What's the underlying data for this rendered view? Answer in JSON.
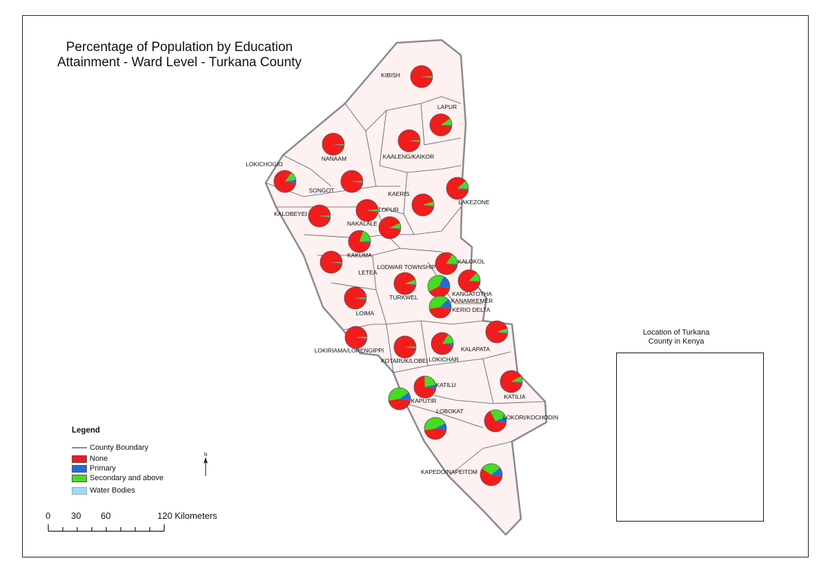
{
  "title": {
    "line1": "Percentage of Population by Education",
    "line2": "Attainment - Ward Level - Turkana County"
  },
  "colors": {
    "none": "#f21c1c",
    "primary": "#1f6fd6",
    "secondary": "#44dd22",
    "water": "#a6d8f2",
    "county_fill": "#fdf1f1",
    "boundary": "#8a8a8a",
    "inset_kenya": "#e4f7e0",
    "inset_turkana": "#ff6a10"
  },
  "legend": {
    "heading": "Legend",
    "items": [
      {
        "label": "County Boundary",
        "type": "line"
      },
      {
        "label": "None",
        "type": "none"
      },
      {
        "label": "Primary",
        "type": "primary"
      },
      {
        "label": "Secondary and above",
        "type": "secondary"
      },
      {
        "label": "Water Bodies",
        "type": "water"
      }
    ]
  },
  "north_arrow": "N",
  "scale": {
    "labels": [
      "0",
      "30",
      "60",
      "120 Kilometers"
    ]
  },
  "inset": {
    "title_line1": "Location of Turkana",
    "title_line2": "County in Kenya"
  },
  "wards": [
    {
      "name": "KIBISH",
      "none": 0.97,
      "primary": 0.01,
      "secondary": 0.02
    },
    {
      "name": "LAPUR",
      "none": 0.88,
      "primary": 0.02,
      "secondary": 0.1
    },
    {
      "name": "NANAAM",
      "none": 0.98,
      "primary": 0.01,
      "secondary": 0.01
    },
    {
      "name": "KAALENG/KAIKOR",
      "none": 0.97,
      "primary": 0.01,
      "secondary": 0.02
    },
    {
      "name": "LOKICHOGIO",
      "none": 0.83,
      "primary": 0.05,
      "secondary": 0.12
    },
    {
      "name": "SONGOT",
      "none": 0.97,
      "primary": 0.01,
      "secondary": 0.02
    },
    {
      "name": "KAERIS",
      "none": 0.93,
      "primary": 0.01,
      "secondary": 0.06
    },
    {
      "name": "LAKEZONE",
      "none": 0.86,
      "primary": 0.02,
      "secondary": 0.12
    },
    {
      "name": "KALOBEYEI",
      "none": 0.97,
      "primary": 0.01,
      "secondary": 0.02
    },
    {
      "name": "LOPUR",
      "none": 0.96,
      "primary": 0.01,
      "secondary": 0.03
    },
    {
      "name": "NAKALALE",
      "none": 0.91,
      "primary": 0.01,
      "secondary": 0.08
    },
    {
      "name": "KAKUMA",
      "none": 0.78,
      "primary": 0.03,
      "secondary": 0.19
    },
    {
      "name": "LETEA",
      "none": 0.98,
      "primary": 0.01,
      "secondary": 0.01
    },
    {
      "name": "KALOKOL",
      "none": 0.82,
      "primary": 0.02,
      "secondary": 0.16
    },
    {
      "name": "LODWAR TOWNSHIP",
      "none": 0.4,
      "primary": 0.2,
      "secondary": 0.4
    },
    {
      "name": "TURKWEL",
      "none": 0.92,
      "primary": 0.01,
      "secondary": 0.07
    },
    {
      "name": "KANGATOTHA",
      "none": 0.85,
      "primary": 0.02,
      "secondary": 0.13
    },
    {
      "name": "KANAMKEMER",
      "none": 0.45,
      "primary": 0.15,
      "secondary": 0.4
    },
    {
      "name": "KERIO DELTA",
      "none": 0.45,
      "primary": 0.15,
      "secondary": 0.4
    },
    {
      "name": "LOIMA",
      "none": 0.97,
      "primary": 0.01,
      "secondary": 0.02
    },
    {
      "name": "KALAPATA",
      "none": 0.93,
      "primary": 0.01,
      "secondary": 0.06
    },
    {
      "name": "LOKIRIAMA/LORENGIPPI",
      "none": 0.97,
      "primary": 0.01,
      "secondary": 0.02
    },
    {
      "name": "KOTARUK/LOBEI",
      "none": 0.97,
      "primary": 0.01,
      "secondary": 0.02
    },
    {
      "name": "LOKICHAR",
      "none": 0.82,
      "primary": 0.03,
      "secondary": 0.15
    },
    {
      "name": "KATILIA",
      "none": 0.9,
      "primary": 0.02,
      "secondary": 0.08
    },
    {
      "name": "KATILU",
      "none": 0.72,
      "primary": 0.06,
      "secondary": 0.22
    },
    {
      "name": "KAPUTIR",
      "none": 0.45,
      "primary": 0.12,
      "secondary": 0.43
    },
    {
      "name": "LOBOKAT",
      "none": 0.45,
      "primary": 0.1,
      "secondary": 0.45
    },
    {
      "name": "LOKORI/KOCHODIN",
      "none": 0.65,
      "primary": 0.08,
      "secondary": 0.27
    },
    {
      "name": "KAPEDO/NAPEITOM",
      "none": 0.57,
      "primary": 0.13,
      "secondary": 0.3
    }
  ]
}
